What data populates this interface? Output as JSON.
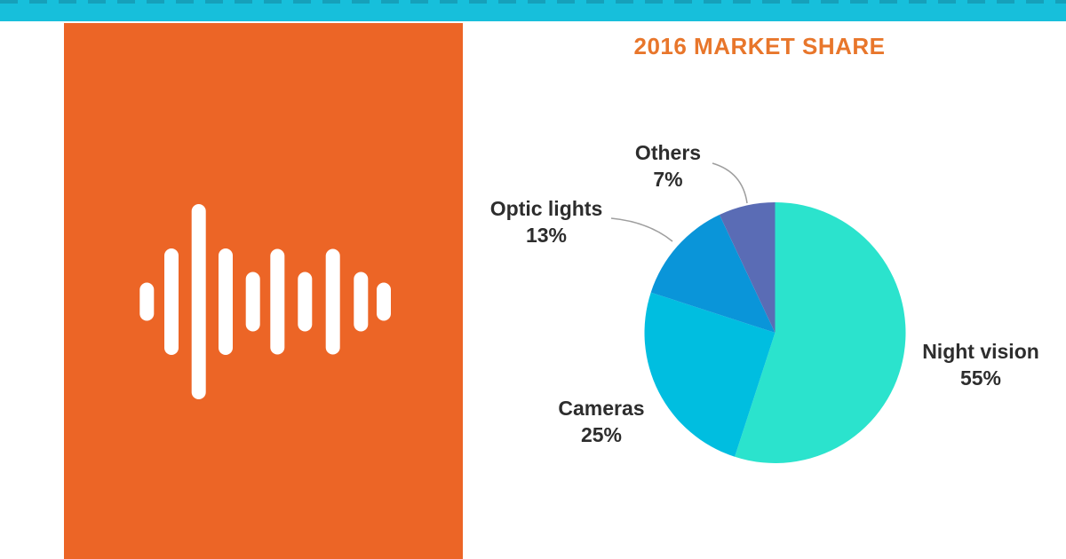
{
  "page": {
    "background_color": "#ffffff",
    "top_bar_color": "#17BFDB",
    "accent_orange": "#EC6526"
  },
  "brand_panel": {
    "color": "#EC6526",
    "icon": "audio-waveform-icon",
    "icon_color": "#ffffff"
  },
  "chart_data": {
    "type": "pie",
    "title": "2016 MARKET SHARE",
    "title_color": "#E8762B",
    "start_angle_deg": 0,
    "direction": "clockwise",
    "legend_position": "labels-around-pie",
    "label_text_color": "#2D2D2D",
    "leader_line_color": "#9E9E9E",
    "segments": [
      {
        "label": "Night vision",
        "value": 55,
        "pct_label": "55%",
        "color": "#2BE3CD",
        "label_side": "right"
      },
      {
        "label": "Cameras",
        "value": 25,
        "pct_label": "25%",
        "color": "#00BEE0",
        "label_side": "bottom-left"
      },
      {
        "label": "Optic lights",
        "value": 13,
        "pct_label": "13%",
        "color": "#0A95D9",
        "label_side": "upper-left"
      },
      {
        "label": "Others",
        "value": 7,
        "pct_label": "7%",
        "color": "#5A6CB5",
        "label_side": "top"
      }
    ]
  }
}
